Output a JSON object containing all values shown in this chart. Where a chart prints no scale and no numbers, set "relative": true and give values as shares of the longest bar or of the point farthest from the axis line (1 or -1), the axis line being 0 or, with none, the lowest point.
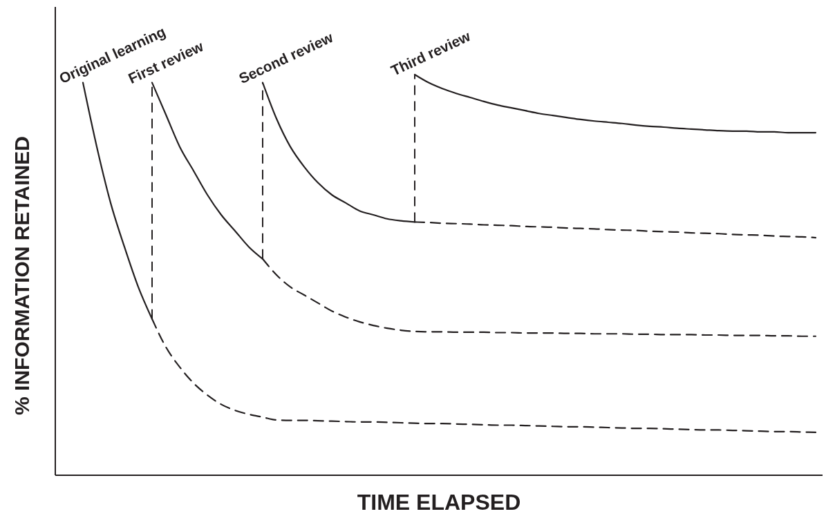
{
  "chart_data": {
    "type": "line",
    "relative": true,
    "xlabel": "TIME ELAPSED",
    "ylabel": "% INFORMATION RETAINED",
    "marker": "none",
    "categories": [
      null,
      null,
      null,
      null,
      null,
      null,
      null,
      null,
      null,
      null,
      null,
      null,
      null,
      null,
      null,
      null,
      null,
      null,
      null,
      null,
      null,
      null,
      null,
      null,
      null,
      null,
      null,
      null,
      null,
      null,
      null,
      null,
      null,
      null,
      null,
      null,
      null,
      null,
      null,
      null,
      null,
      null,
      null,
      null,
      null,
      null,
      null,
      null,
      null,
      null,
      null,
      null,
      null,
      null,
      null,
      null
    ],
    "series": [
      {
        "name": "Original learning",
        "color": "#231f20",
        "line_style": "solid",
        "values": [
          null,
          null,
          0.98,
          0.82,
          0.68,
          0.57,
          0.47,
          0.39,
          null,
          null,
          null,
          null,
          null,
          null,
          null,
          null,
          null,
          null,
          null,
          null,
          null,
          null,
          null,
          null,
          null,
          null,
          null,
          null,
          null,
          null,
          null,
          null,
          null,
          null,
          null,
          null,
          null,
          null,
          null,
          null,
          null,
          null,
          null,
          null,
          null,
          null,
          null,
          null,
          null,
          null,
          null,
          null,
          null,
          null,
          null,
          null
        ]
      },
      {
        "color": "#231f20",
        "line_style": "dashed",
        "values": [
          null,
          null,
          null,
          null,
          null,
          null,
          null,
          0.39,
          0.32,
          0.27,
          0.23,
          0.2,
          0.177,
          0.162,
          0.152,
          0.145,
          0.138,
          0.137,
          0.137,
          0.136,
          0.135,
          0.134,
          0.133,
          0.133,
          0.132,
          0.131,
          0.13,
          0.129,
          0.129,
          0.128,
          0.127,
          0.126,
          0.125,
          0.125,
          0.124,
          0.123,
          0.122,
          0.121,
          0.121,
          0.12,
          0.119,
          0.118,
          0.117,
          0.117,
          0.116,
          0.115,
          0.114,
          0.113,
          0.113,
          0.112,
          0.111,
          0.11,
          0.109,
          0.109,
          0.108,
          0.107
        ]
      },
      {
        "name": "First review",
        "color": "#231f20",
        "line_style": "solid",
        "values": [
          null,
          null,
          null,
          null,
          null,
          null,
          null,
          0.98,
          0.9,
          0.82,
          0.76,
          0.7,
          0.65,
          0.61,
          0.57,
          0.54,
          null,
          null,
          null,
          null,
          null,
          null,
          null,
          null,
          null,
          null,
          null,
          null,
          null,
          null,
          null,
          null,
          null,
          null,
          null,
          null,
          null,
          null,
          null,
          null,
          null,
          null,
          null,
          null,
          null,
          null,
          null,
          null,
          null,
          null,
          null,
          null,
          null,
          null,
          null,
          null
        ]
      },
      {
        "color": "#231f20",
        "line_style": "dashed",
        "values": [
          null,
          null,
          null,
          null,
          null,
          null,
          null,
          null,
          null,
          null,
          null,
          null,
          null,
          null,
          null,
          0.54,
          0.5,
          0.47,
          0.45,
          0.43,
          0.41,
          0.395,
          0.383,
          0.374,
          0.367,
          0.362,
          0.359,
          0.358,
          0.358,
          0.357,
          0.357,
          0.357,
          0.356,
          0.356,
          0.355,
          0.355,
          0.355,
          0.354,
          0.354,
          0.353,
          0.353,
          0.353,
          0.352,
          0.352,
          0.351,
          0.351,
          0.351,
          0.35,
          0.35,
          0.349,
          0.349,
          0.349,
          0.348,
          0.348,
          0.347,
          0.347
        ]
      },
      {
        "name": "Second review",
        "color": "#231f20",
        "line_style": "solid",
        "values": [
          null,
          null,
          null,
          null,
          null,
          null,
          null,
          null,
          null,
          null,
          null,
          null,
          null,
          null,
          null,
          0.98,
          0.89,
          0.82,
          0.77,
          0.73,
          0.7,
          0.68,
          0.66,
          0.65,
          0.64,
          0.635,
          0.632,
          null,
          null,
          null,
          null,
          null,
          null,
          null,
          null,
          null,
          null,
          null,
          null,
          null,
          null,
          null,
          null,
          null,
          null,
          null,
          null,
          null,
          null,
          null,
          null,
          null,
          null,
          null,
          null,
          null
        ]
      },
      {
        "color": "#231f20",
        "line_style": "dashed",
        "values": [
          null,
          null,
          null,
          null,
          null,
          null,
          null,
          null,
          null,
          null,
          null,
          null,
          null,
          null,
          null,
          null,
          null,
          null,
          null,
          null,
          null,
          null,
          null,
          null,
          null,
          null,
          0.632,
          0.631,
          0.629,
          0.628,
          0.627,
          0.625,
          0.624,
          0.623,
          0.621,
          0.62,
          0.619,
          0.617,
          0.616,
          0.615,
          0.613,
          0.612,
          0.611,
          0.609,
          0.608,
          0.607,
          0.605,
          0.604,
          0.603,
          0.601,
          0.6,
          0.599,
          0.597,
          0.596,
          0.595,
          0.593
        ]
      },
      {
        "name": "Third review",
        "color": "#231f20",
        "line_style": "solid",
        "values": [
          null,
          null,
          null,
          null,
          null,
          null,
          null,
          null,
          null,
          null,
          null,
          null,
          null,
          null,
          null,
          null,
          null,
          null,
          null,
          null,
          null,
          null,
          null,
          null,
          null,
          null,
          1.0,
          0.98,
          0.965,
          0.953,
          0.943,
          0.933,
          0.924,
          0.917,
          0.91,
          0.903,
          0.898,
          0.893,
          0.888,
          0.884,
          0.881,
          0.878,
          0.874,
          0.871,
          0.869,
          0.866,
          0.864,
          0.862,
          0.86,
          0.859,
          0.859,
          0.857,
          0.857,
          0.855,
          0.855,
          0.855
        ]
      }
    ]
  }
}
